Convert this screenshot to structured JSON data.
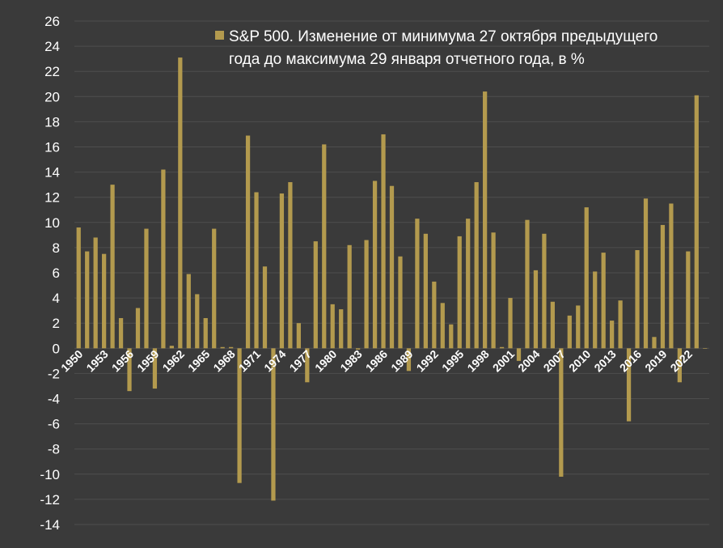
{
  "chart_data": {
    "type": "bar",
    "legend": {
      "placement": "top-right",
      "label_line1": "S&P 500. Изменение от минимума 27 октября предыдущего",
      "label_line2": "года до максимума 29 января отчетного года, в %"
    },
    "series_color": "#b39a4e",
    "background": "#3a3a3a",
    "grid_color": "#4e4e4e",
    "grid": true,
    "ylim": [
      -14,
      26
    ],
    "yticks": [
      26,
      24,
      22,
      20,
      18,
      16,
      14,
      12,
      10,
      8,
      6,
      4,
      2,
      0,
      -2,
      -4,
      -6,
      -8,
      -10,
      -12,
      -14
    ],
    "xtick_labels": [
      "1950",
      "1953",
      "1956",
      "1959",
      "1962",
      "1965",
      "1968",
      "1971",
      "1974",
      "1977",
      "1980",
      "1983",
      "1986",
      "1989",
      "1992",
      "1995",
      "1998",
      "2001",
      "2004",
      "2007",
      "2010",
      "2013",
      "2016",
      "2019",
      "2022"
    ],
    "categories": [
      1950,
      1951,
      1952,
      1953,
      1954,
      1955,
      1956,
      1957,
      1958,
      1959,
      1960,
      1961,
      1962,
      1963,
      1964,
      1965,
      1966,
      1967,
      1968,
      1969,
      1970,
      1971,
      1972,
      1973,
      1974,
      1975,
      1976,
      1977,
      1978,
      1979,
      1980,
      1981,
      1982,
      1983,
      1984,
      1985,
      1986,
      1987,
      1988,
      1989,
      1990,
      1991,
      1992,
      1993,
      1994,
      1995,
      1996,
      1997,
      1998,
      1999,
      2000,
      2001,
      2002,
      2003,
      2004,
      2005,
      2006,
      2007,
      2008,
      2009,
      2010,
      2011,
      2012,
      2013,
      2014,
      2015,
      2016,
      2017,
      2018,
      2019,
      2020,
      2021,
      2022,
      2023,
      2024
    ],
    "values": [
      9.6,
      7.7,
      8.8,
      7.5,
      13.0,
      2.4,
      -3.4,
      3.2,
      9.5,
      -3.2,
      14.2,
      0.2,
      23.1,
      5.9,
      4.3,
      2.4,
      9.5,
      0.1,
      0.1,
      -10.7,
      16.9,
      12.4,
      6.5,
      -12.1,
      12.3,
      13.2,
      2.0,
      -2.7,
      8.5,
      16.2,
      3.5,
      3.1,
      8.2,
      -0.1,
      8.6,
      13.3,
      17.0,
      12.9,
      7.3,
      -1.8,
      10.3,
      9.1,
      5.3,
      3.6,
      1.9,
      8.9,
      10.3,
      13.2,
      20.4,
      9.2,
      0.1,
      4.0,
      -1.0,
      10.2,
      6.2,
      9.1,
      3.7,
      -10.2,
      2.6,
      3.4,
      11.2,
      6.1,
      7.6,
      2.2,
      3.8,
      -5.8,
      7.8,
      11.9,
      0.9,
      9.8,
      11.5,
      -2.7,
      7.7,
      20.1,
      0
    ]
  }
}
